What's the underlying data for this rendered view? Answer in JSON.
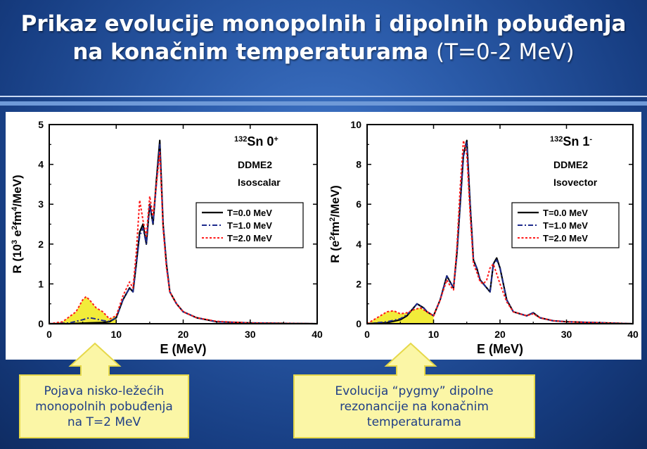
{
  "slide": {
    "title_line1": "Prikaz evolucije monopolnih i dipolnih pobuđenja",
    "title_line2_main": "na konačnim temperaturama",
    "title_line2_paren": "(T=0-2 MeV)"
  },
  "callouts": [
    {
      "lines": [
        "Pojava nisko-ležećih",
        "monopolnih pobuđenja",
        "na T=2 MeV"
      ]
    },
    {
      "lines": [
        "Evolucija “pygmy” dipolne",
        "rezonancije na konačnim",
        "temperaturama"
      ]
    }
  ],
  "colors": {
    "t0": "#000000",
    "t1": "#1c2a8c",
    "t2": "#ff1a1a",
    "highlight": "#f2ec3a",
    "callout_fill": "#fbf6a6",
    "callout_border": "#e6d84a",
    "callout_text": "#1f3e86"
  },
  "chart_data": [
    {
      "type": "line",
      "nucleus_mass": "132",
      "nucleus": "Sn",
      "state": "0",
      "state_sup": "+",
      "model": "DDME2",
      "channel": "Isoscalar",
      "xlabel": "E (MeV)",
      "ylabel_parts": [
        "R (10",
        "3",
        " e",
        "2",
        "fm",
        "4",
        "/MeV)"
      ],
      "xlim": [
        0,
        40
      ],
      "ylim": [
        0,
        5
      ],
      "xticks": [
        0,
        10,
        20,
        30,
        40
      ],
      "yticks": [
        0,
        1,
        2,
        3,
        4,
        5
      ],
      "legend_position": "right",
      "highlight_range": [
        0,
        10
      ],
      "series": [
        {
          "name": "T=0.0 MeV",
          "style": "solid",
          "x": [
            0,
            3,
            6,
            8,
            9,
            10,
            11,
            12,
            12.5,
            13,
            13.5,
            14,
            14.5,
            15,
            15.5,
            16,
            16.5,
            17,
            17.5,
            18,
            19,
            20,
            22,
            25,
            30,
            40
          ],
          "y": [
            0,
            0,
            0.02,
            0.03,
            0.05,
            0.15,
            0.6,
            0.9,
            0.8,
            1.5,
            2.3,
            2.5,
            2.0,
            3.0,
            2.5,
            3.6,
            4.6,
            2.5,
            1.5,
            0.8,
            0.5,
            0.3,
            0.15,
            0.05,
            0.02,
            0
          ]
        },
        {
          "name": "T=1.0 MeV",
          "style": "dashdot",
          "x": [
            0,
            3,
            5,
            6,
            7,
            8,
            9,
            10,
            11,
            12,
            12.5,
            13,
            13.5,
            14,
            14.5,
            15,
            15.5,
            16,
            16.5,
            17,
            17.5,
            18,
            19,
            20,
            22,
            25,
            30,
            40
          ],
          "y": [
            0,
            0.02,
            0.1,
            0.15,
            0.12,
            0.08,
            0.06,
            0.15,
            0.6,
            0.9,
            0.8,
            1.5,
            2.2,
            2.4,
            2.0,
            3.0,
            2.5,
            3.5,
            4.5,
            2.5,
            1.5,
            0.8,
            0.5,
            0.3,
            0.15,
            0.05,
            0.02,
            0
          ]
        },
        {
          "name": "T=2.0 MeV",
          "style": "dotted",
          "x": [
            0,
            2,
            4,
            5,
            5.5,
            6,
            7,
            8,
            9,
            10,
            11,
            12,
            12.5,
            13,
            13.5,
            14,
            14.5,
            15,
            15.5,
            16,
            16.5,
            17,
            17.5,
            18,
            19,
            20,
            22,
            25,
            30,
            40
          ],
          "y": [
            0,
            0.05,
            0.3,
            0.6,
            0.68,
            0.6,
            0.4,
            0.3,
            0.12,
            0.2,
            0.7,
            1.05,
            0.9,
            1.8,
            3.1,
            2.6,
            2.2,
            3.2,
            2.7,
            3.5,
            4.3,
            2.4,
            1.4,
            0.8,
            0.5,
            0.3,
            0.15,
            0.06,
            0.02,
            0
          ]
        }
      ]
    },
    {
      "type": "line",
      "nucleus_mass": "132",
      "nucleus": "Sn",
      "state": "1",
      "state_sup": "-",
      "model": "DDME2",
      "channel": "Isovector",
      "xlabel": "E (MeV)",
      "ylabel_parts": [
        "R (e",
        "2",
        "fm",
        "2",
        "/MeV)"
      ],
      "xlim": [
        0,
        40
      ],
      "ylim": [
        0,
        10
      ],
      "xticks": [
        0,
        10,
        20,
        30,
        40
      ],
      "yticks": [
        0,
        2,
        4,
        6,
        8,
        10
      ],
      "legend_position": "right",
      "highlight_range": [
        0,
        10
      ],
      "series": [
        {
          "name": "T=0.0 MeV",
          "style": "solid",
          "x": [
            0,
            3,
            5,
            6,
            7,
            7.5,
            8,
            8.5,
            9,
            10,
            11,
            12,
            12.5,
            13,
            13.5,
            14,
            14.5,
            15,
            15.5,
            16,
            16.5,
            17,
            17.5,
            18,
            18.5,
            19,
            19.5,
            20,
            21,
            22,
            23,
            24,
            25,
            26,
            28,
            30,
            40
          ],
          "y": [
            0,
            0.05,
            0.2,
            0.4,
            0.8,
            1.0,
            0.9,
            0.8,
            0.6,
            0.4,
            1.2,
            2.4,
            2.1,
            1.8,
            3.5,
            6,
            8.5,
            9.2,
            6,
            3.2,
            2.8,
            2.2,
            2.0,
            1.8,
            1.6,
            3,
            3.3,
            2.8,
            1.2,
            0.6,
            0.5,
            0.4,
            0.55,
            0.3,
            0.15,
            0.1,
            0
          ]
        },
        {
          "name": "T=1.0 MeV",
          "style": "dashdot",
          "x": [
            0,
            3,
            5,
            6,
            7,
            7.5,
            8,
            8.5,
            9,
            10,
            11,
            12,
            12.5,
            13,
            13.5,
            14,
            14.5,
            15,
            15.5,
            16,
            16.5,
            17,
            17.5,
            18,
            18.5,
            19,
            19.5,
            20,
            21,
            22,
            23,
            24,
            25,
            26,
            28,
            30,
            40
          ],
          "y": [
            0,
            0.1,
            0.25,
            0.45,
            0.8,
            1.0,
            0.9,
            0.8,
            0.6,
            0.4,
            1.2,
            2.4,
            2.1,
            1.8,
            3.4,
            5.9,
            8.4,
            9.1,
            6,
            3.2,
            2.8,
            2.2,
            2.0,
            1.8,
            1.6,
            3,
            3.2,
            2.8,
            1.2,
            0.6,
            0.5,
            0.4,
            0.55,
            0.3,
            0.15,
            0.1,
            0
          ]
        },
        {
          "name": "T=2.0 MeV",
          "style": "dotted",
          "x": [
            0,
            2,
            3,
            4,
            5,
            6,
            7,
            8,
            9,
            10,
            11,
            12,
            12.5,
            13,
            13.5,
            14,
            14.5,
            15,
            15.5,
            16,
            16.5,
            17,
            17.5,
            18,
            18.5,
            19,
            19.5,
            20,
            21,
            22,
            23,
            24,
            25,
            26,
            28,
            30,
            40
          ],
          "y": [
            0,
            0.4,
            0.6,
            0.65,
            0.5,
            0.55,
            0.7,
            0.8,
            0.6,
            0.4,
            1.2,
            2.2,
            1.9,
            1.7,
            3.8,
            6.8,
            9.2,
            8.5,
            5.5,
            3.0,
            2.6,
            2.1,
            2.0,
            2.2,
            2.8,
            3.0,
            2.5,
            2.0,
            1.1,
            0.6,
            0.5,
            0.4,
            0.5,
            0.3,
            0.15,
            0.1,
            0
          ]
        }
      ]
    }
  ]
}
